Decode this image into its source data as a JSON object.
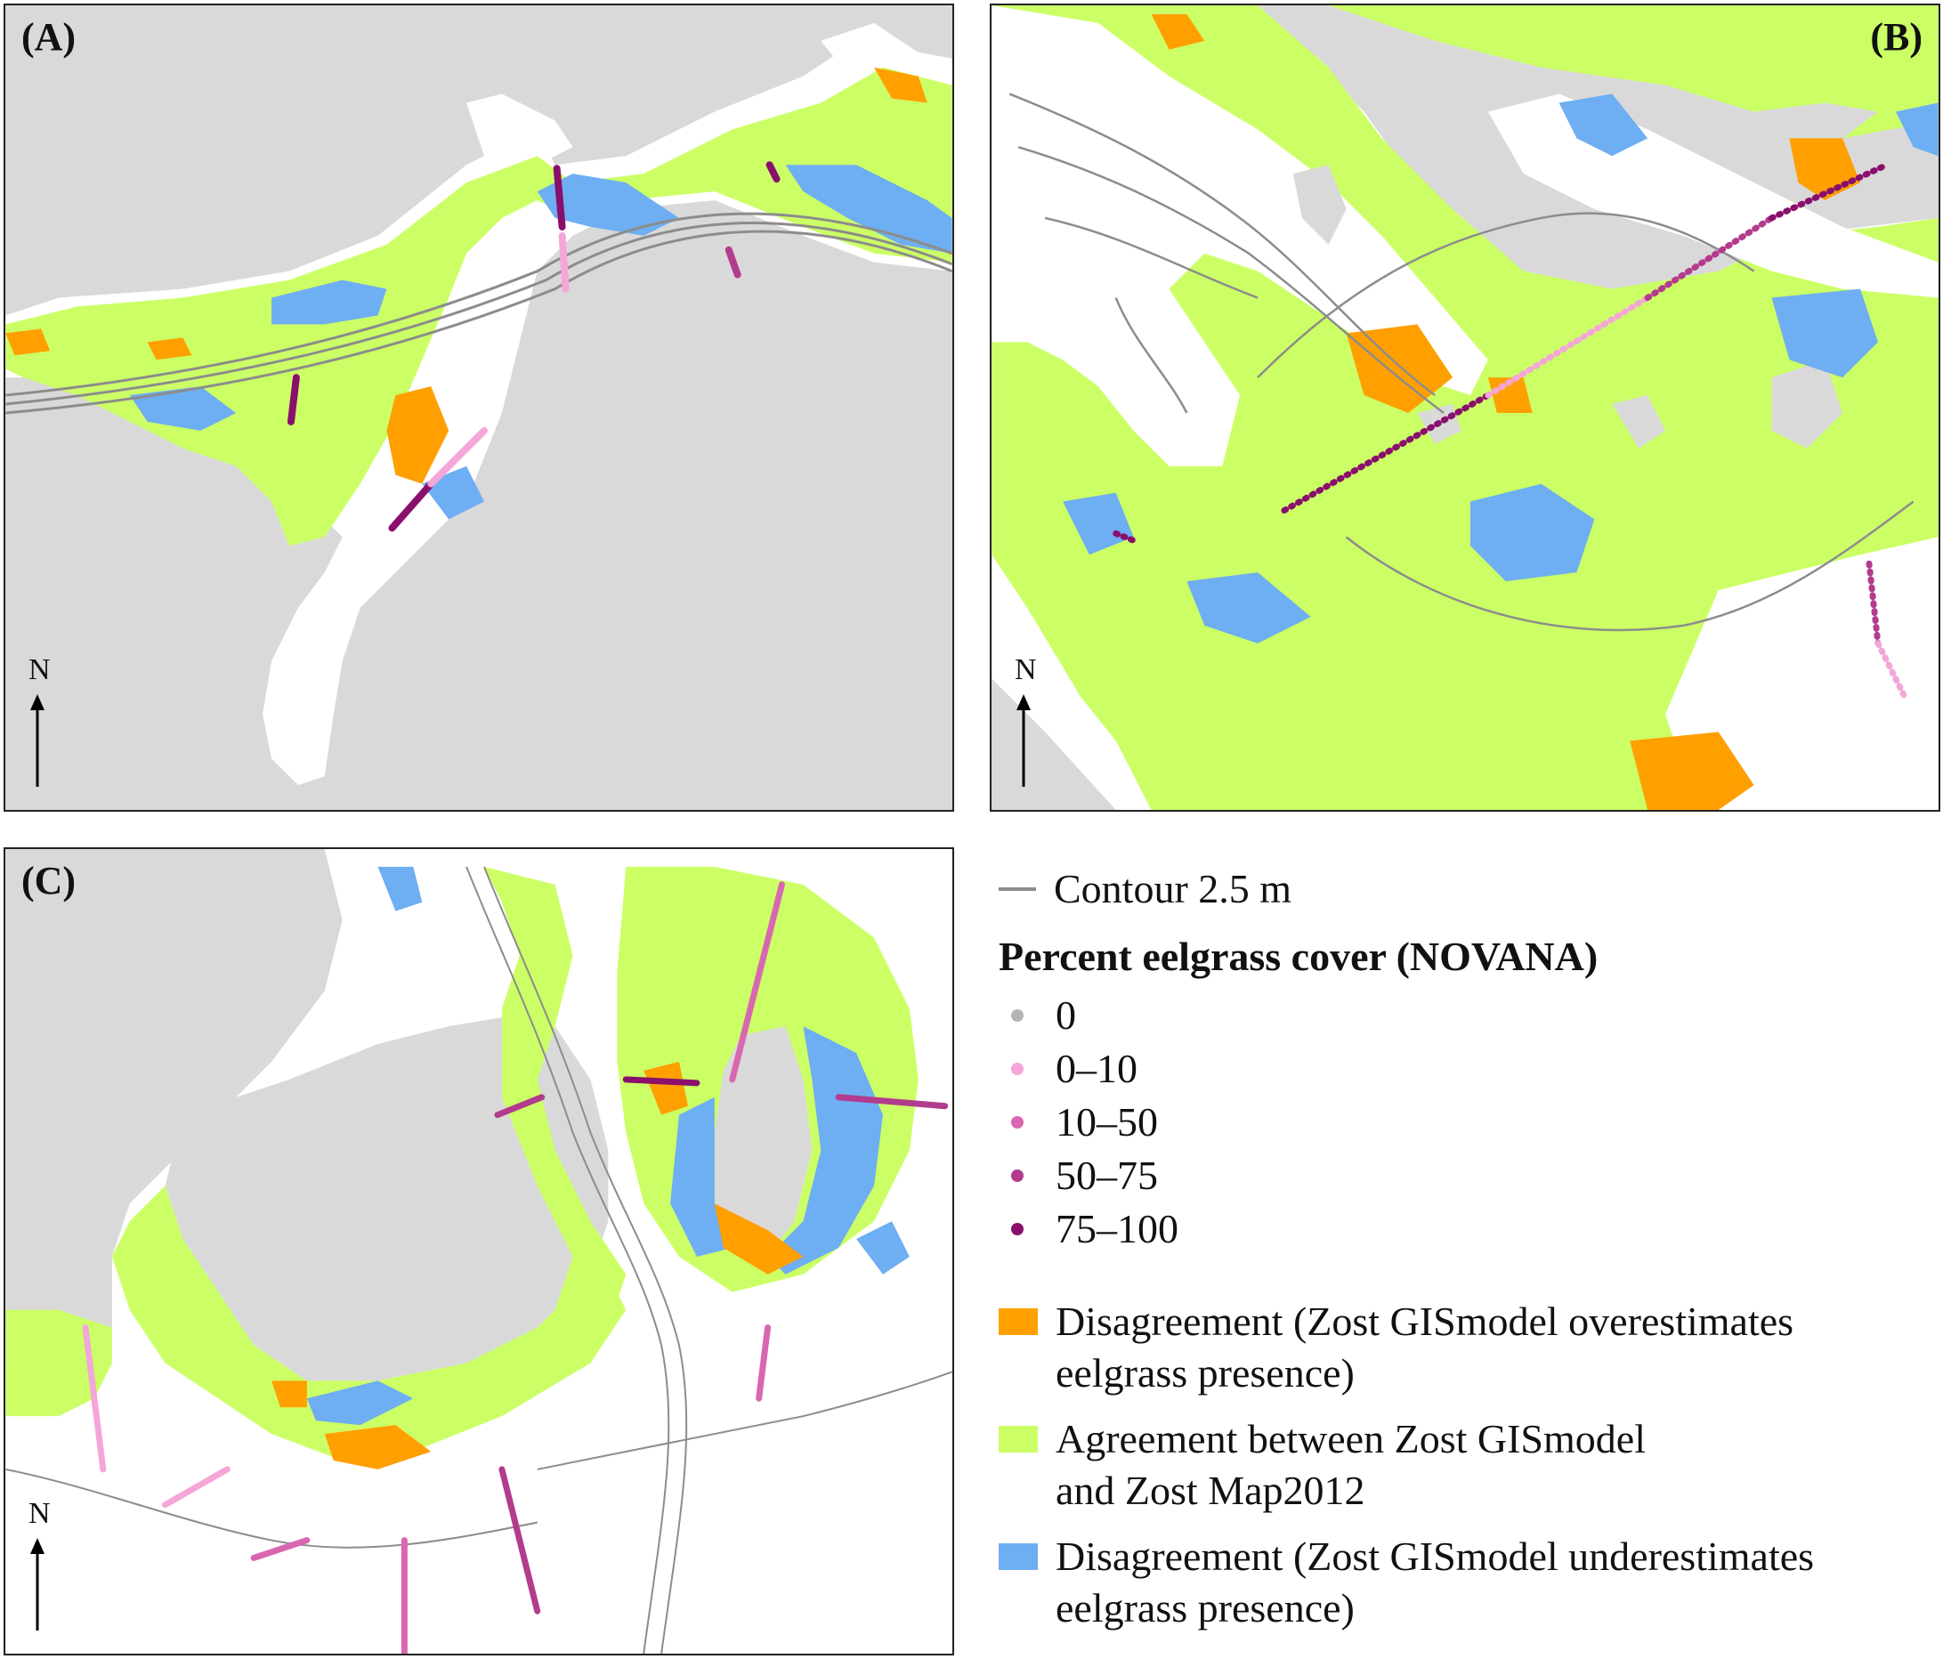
{
  "panels": [
    {
      "label": "(A)",
      "north": "N"
    },
    {
      "label": "(B)",
      "north": "N"
    },
    {
      "label": "(C)",
      "north": "N"
    }
  ],
  "legend": {
    "contour": {
      "label": "Contour 2.5 m",
      "color": "#8c8c8c"
    },
    "cover_title": "Percent eelgrass cover (NOVANA)",
    "cover_classes": [
      {
        "label": "0",
        "color": "#b5b5b5"
      },
      {
        "label": "0–10",
        "color": "#f4a6d8"
      },
      {
        "label": "10–50",
        "color": "#d966b0"
      },
      {
        "label": "50–75",
        "color": "#b33b8d"
      },
      {
        "label": "75–100",
        "color": "#8a0f6c"
      }
    ],
    "classes": [
      {
        "line1": "Disagreement (Zost GISmodel overestimates",
        "line2": "eelgrass presence)",
        "color": "#ff9f00"
      },
      {
        "line1": "Agreement between Zost GISmodel",
        "line2": "and Zost Map2012",
        "color": "#ccff66"
      },
      {
        "line1": "Disagreement (Zost GISmodel underestimates",
        "line2": "eelgrass presence)",
        "color": "#6eaef2"
      }
    ]
  },
  "colors": {
    "land": "#d9d9d9",
    "water": "#ffffff",
    "agreement": "#ccff66",
    "over": "#ff9f00",
    "under": "#6eaef2",
    "contour": "#8c8c8c"
  }
}
